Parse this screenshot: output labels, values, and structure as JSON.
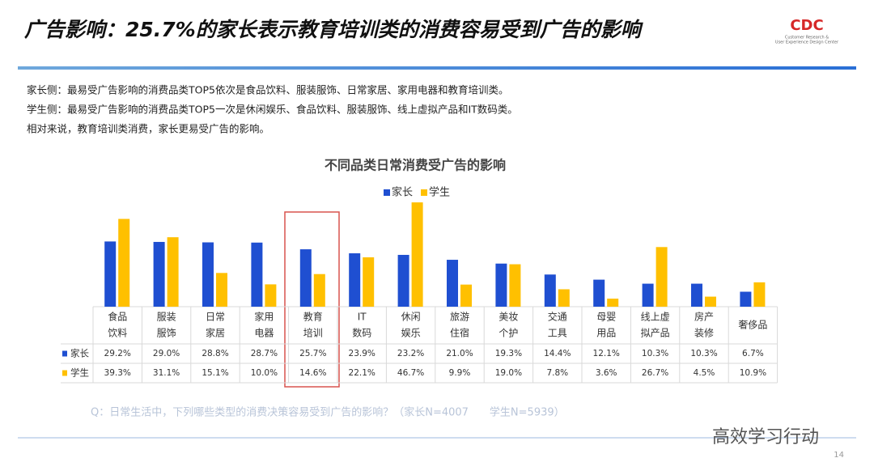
{
  "header": {
    "title": "广告影响：25.7%的家长表示教育培训类的消费容易受到广告的影响",
    "logo": "CDC",
    "logo_subtitle": [
      "Customer Research &",
      "User Experience Design Center"
    ]
  },
  "bullets": [
    "家长侧：最易受广告影响的消费品类TOP5依次是食品饮料、服装服饰、日常家居、家用电器和教育培训类。",
    "学生侧：最易受广告影响的消费品类TOP5一次是休闲娱乐、食品饮料、服装服饰、线上虚拟产品和IT数码类。",
    "相对来说，教育培训类消费，家长更易受广告的影响。"
  ],
  "chart_data": {
    "type": "bar",
    "title": "不同品类日常消费受广告的影响",
    "legend": "top",
    "categories": [
      [
        "食品",
        "饮料"
      ],
      [
        "服装",
        "服饰"
      ],
      [
        "日常",
        "家居"
      ],
      [
        "家用",
        "电器"
      ],
      [
        "教育",
        "培训"
      ],
      [
        "IT",
        "数码"
      ],
      [
        "休闲",
        "娱乐"
      ],
      [
        "旅游",
        "住宿"
      ],
      [
        "美妆",
        "个护"
      ],
      [
        "交通",
        "工具"
      ],
      [
        "母婴",
        "用品"
      ],
      [
        "线上虚",
        "拟产品"
      ],
      [
        "房产",
        "装修"
      ],
      [
        "奢侈品"
      ]
    ],
    "series": [
      {
        "name": "家长",
        "color": "#1f4fd1",
        "values": [
          29.2,
          29.0,
          28.8,
          28.7,
          25.7,
          23.9,
          23.2,
          21.0,
          19.3,
          14.4,
          12.1,
          10.3,
          10.3,
          6.7
        ],
        "value_labels": [
          "29.2%",
          "29.0%",
          "28.8%",
          "28.7%",
          "25.7%",
          "23.9%",
          "23.2%",
          "21.0%",
          "19.3%",
          "14.4%",
          "12.1%",
          "10.3%",
          "10.3%",
          "6.7%"
        ]
      },
      {
        "name": "学生",
        "color": "#ffc000",
        "values": [
          39.3,
          31.1,
          15.1,
          10.0,
          14.6,
          22.1,
          46.7,
          9.9,
          19.0,
          7.8,
          3.6,
          26.7,
          4.5,
          10.9
        ],
        "value_labels": [
          "39.3%",
          "31.1%",
          "15.1%",
          "10.0%",
          "14.6%",
          "22.1%",
          "46.7%",
          "9.9%",
          "19.0%",
          "7.8%",
          "3.6%",
          "26.7%",
          "4.5%",
          "10.9%"
        ]
      }
    ]
  },
  "footnote": "Q：日常生活中，下列哪些类型的消费决策容易受到广告的影响？（家长N=4007　　学生N=5939）",
  "watermark": "高效学习行动",
  "page_number": "14"
}
